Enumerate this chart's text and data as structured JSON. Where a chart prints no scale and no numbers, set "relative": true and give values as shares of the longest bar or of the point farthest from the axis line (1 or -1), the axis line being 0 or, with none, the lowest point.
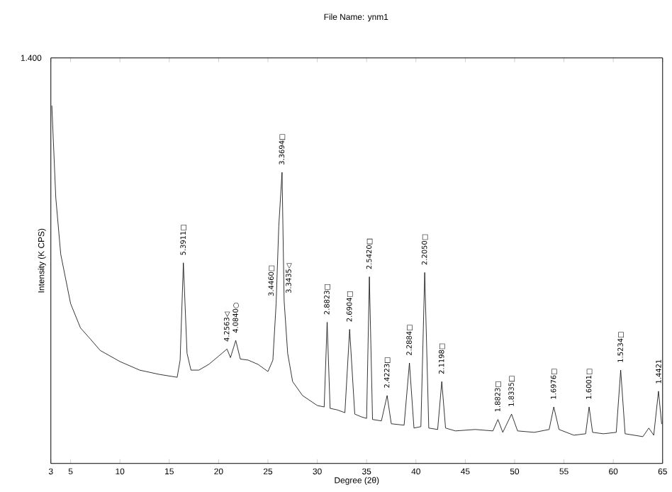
{
  "chart_data": {
    "type": "line",
    "title": "File Name:  ynm1",
    "xlabel": "Degree (2θ)",
    "ylabel": "Intensity    (K CPS)",
    "relative": true,
    "color": "#000000",
    "marker": "none",
    "line_style": "solid",
    "grid": false,
    "xlim": [
      3,
      65
    ],
    "xticks": [
      3,
      5,
      10,
      15,
      20,
      25,
      30,
      35,
      40,
      45,
      50,
      55,
      60,
      65
    ],
    "x": [
      3.1,
      3.5,
      4,
      5,
      6,
      7,
      8,
      10,
      12,
      14,
      15.8,
      16.1,
      16.43,
      16.8,
      17.2,
      18,
      19,
      20,
      20.85,
      21.2,
      21.74,
      22.2,
      23,
      24,
      25,
      25.5,
      25.83,
      26.1,
      26.43,
      26.64,
      27,
      27.5,
      28.5,
      30,
      30.7,
      31.0,
      31.3,
      32,
      32.8,
      33.28,
      33.8,
      34.5,
      35.0,
      35.28,
      35.6,
      36.5,
      37.08,
      37.5,
      38.8,
      39.34,
      39.8,
      40.5,
      40.89,
      41.3,
      42.2,
      42.62,
      43.0,
      44,
      46,
      47.8,
      48.31,
      48.8,
      49.69,
      50.3,
      52,
      53.5,
      53.97,
      54.5,
      56,
      57.2,
      57.55,
      57.9,
      59,
      60.3,
      60.75,
      61.2,
      63,
      63.6,
      64.1,
      64.58,
      64.9
    ],
    "values": [
      1.0,
      0.743,
      0.585,
      0.447,
      0.379,
      0.348,
      0.316,
      0.285,
      0.261,
      0.249,
      0.241,
      0.289,
      0.561,
      0.308,
      0.261,
      0.261,
      0.277,
      0.3,
      0.32,
      0.296,
      0.344,
      0.292,
      0.289,
      0.277,
      0.257,
      0.289,
      0.447,
      0.664,
      0.814,
      0.455,
      0.308,
      0.229,
      0.19,
      0.162,
      0.158,
      0.395,
      0.154,
      0.15,
      0.142,
      0.375,
      0.138,
      0.13,
      0.126,
      0.522,
      0.123,
      0.119,
      0.19,
      0.111,
      0.107,
      0.281,
      0.099,
      0.103,
      0.534,
      0.099,
      0.095,
      0.229,
      0.099,
      0.091,
      0.095,
      0.091,
      0.123,
      0.087,
      0.138,
      0.091,
      0.087,
      0.095,
      0.158,
      0.095,
      0.079,
      0.083,
      0.158,
      0.087,
      0.083,
      0.087,
      0.261,
      0.083,
      0.075,
      0.099,
      0.079,
      0.202,
      0.111
    ],
    "annotations": [
      "1.400",
      {
        "text": "5.3911□",
        "x": 16.43,
        "y": 0.561
      },
      {
        "text": "4.2563◁",
        "x": 20.85,
        "y": 0.32
      },
      {
        "text": "4.0840○",
        "x": 21.74,
        "y": 0.344
      },
      {
        "text": "3.4460□",
        "x": 25.83,
        "y": 0.447
      },
      {
        "text": "3.3694□",
        "x": 26.43,
        "y": 0.814
      },
      {
        "text": "3.3435◁",
        "x": 26.64,
        "y": 0.455
      },
      {
        "text": "2.8823□",
        "x": 31.0,
        "y": 0.395
      },
      {
        "text": "2.6904□",
        "x": 33.28,
        "y": 0.375
      },
      {
        "text": "2.5420□",
        "x": 35.28,
        "y": 0.522
      },
      {
        "text": "2.4223□",
        "x": 37.08,
        "y": 0.19
      },
      {
        "text": "2.2884□",
        "x": 39.34,
        "y": 0.281
      },
      {
        "text": "2.2050□",
        "x": 40.89,
        "y": 0.534
      },
      {
        "text": "2.1198□",
        "x": 42.62,
        "y": 0.229
      },
      {
        "text": "1.8823□",
        "x": 48.31,
        "y": 0.123
      },
      {
        "text": "1.8335□",
        "x": 49.69,
        "y": 0.138
      },
      {
        "text": "1.6976□",
        "x": 53.97,
        "y": 0.158
      },
      {
        "text": "1.6001□",
        "x": 57.55,
        "y": 0.158
      },
      {
        "text": "1.5234□",
        "x": 60.75,
        "y": 0.261
      },
      {
        "text": "1.4421",
        "x": 64.58,
        "y": 0.202
      }
    ]
  }
}
